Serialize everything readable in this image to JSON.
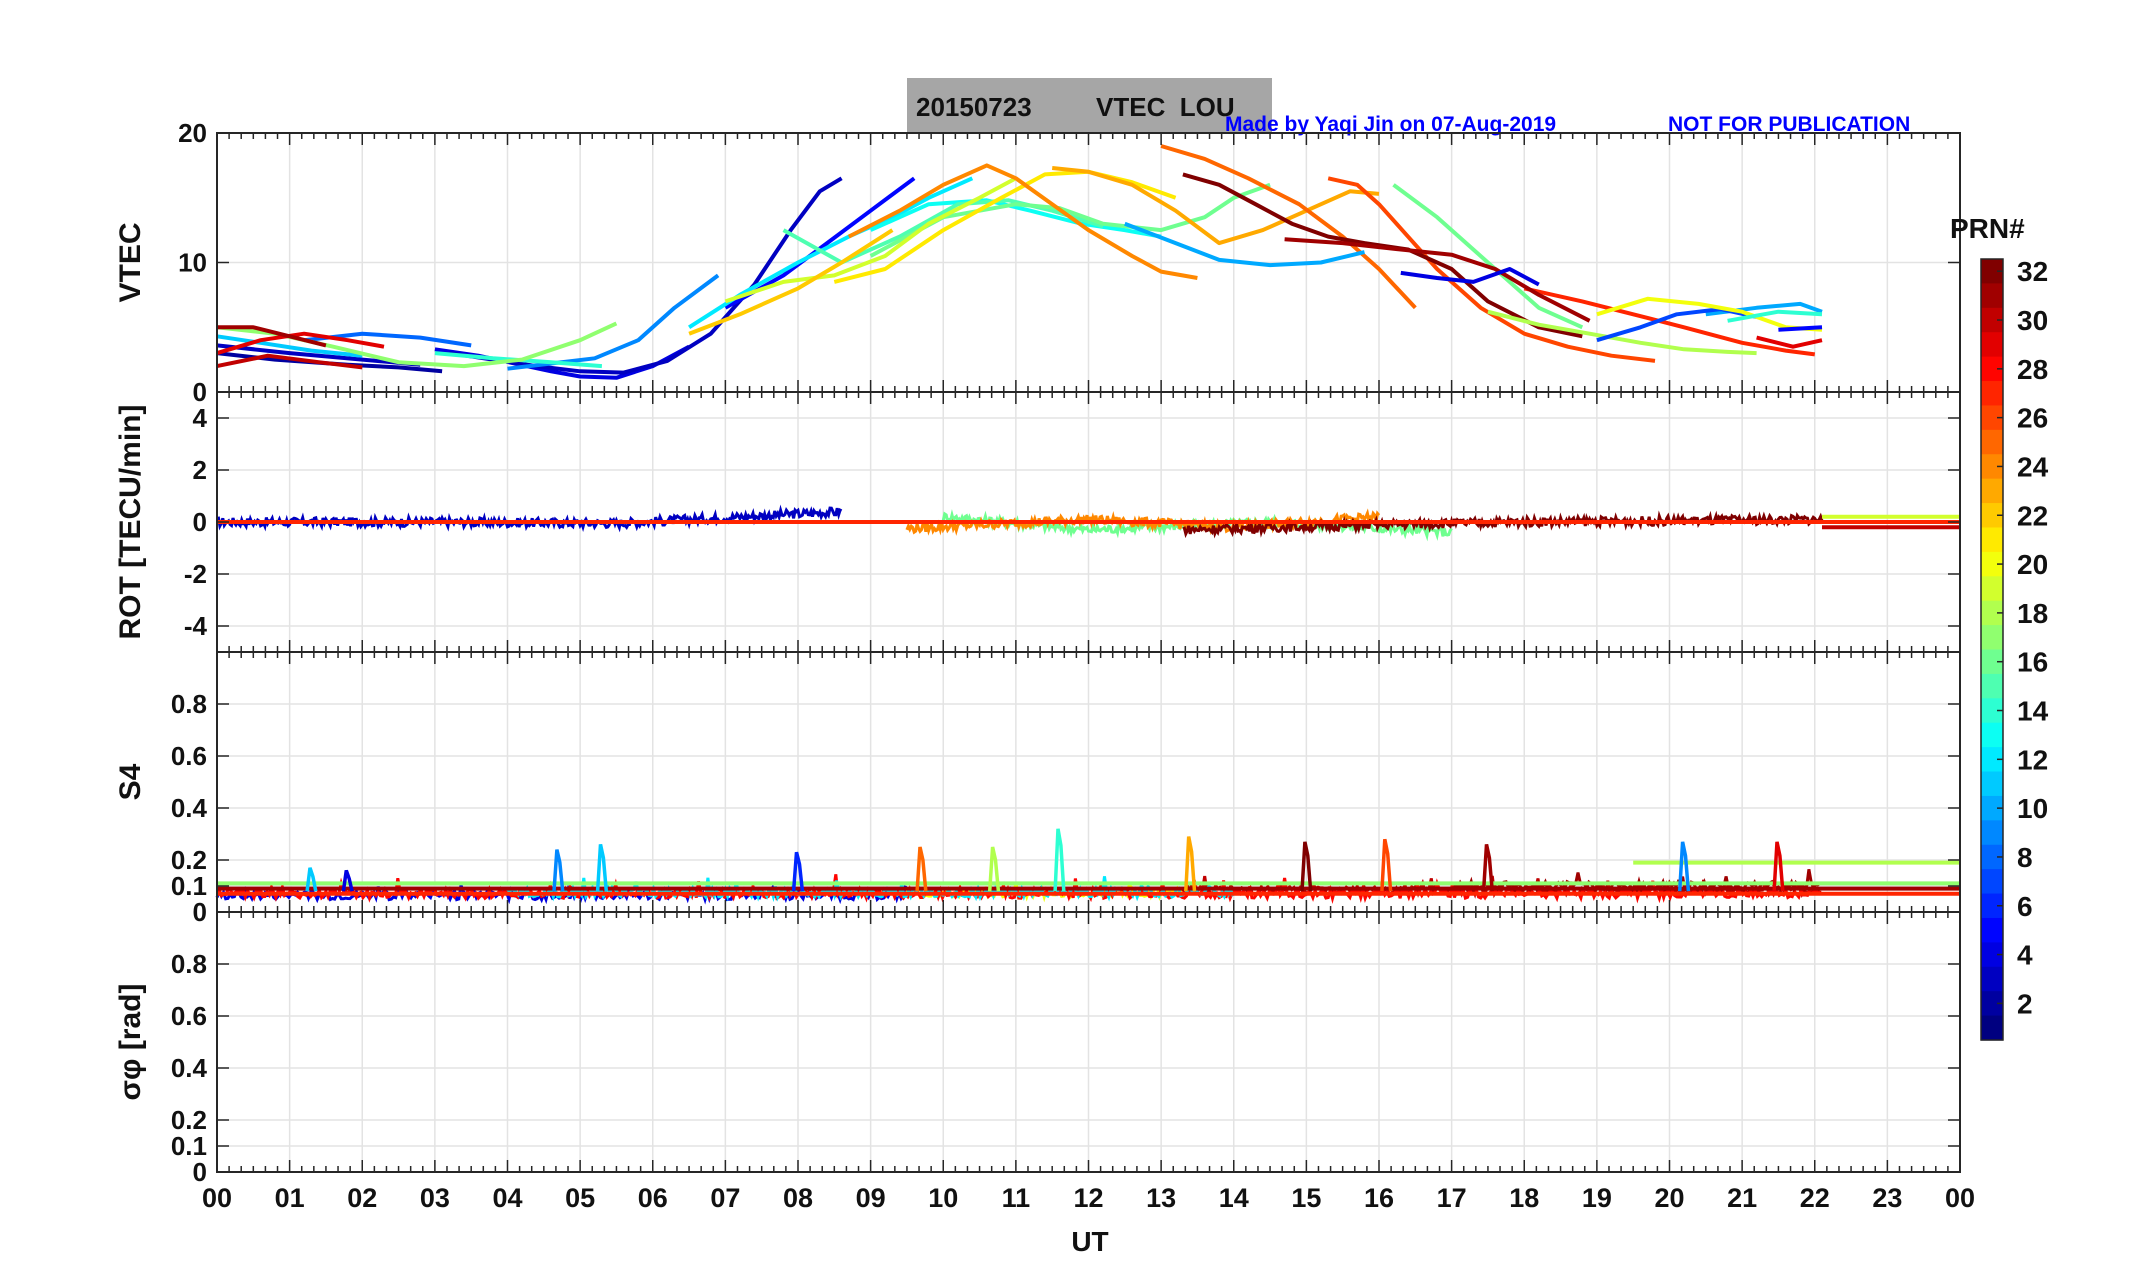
{
  "figure": {
    "title_date": "20150723",
    "title_text": "VTEC  LOU",
    "credit": "Made by Yaqi Jin on 07-Aug-2019",
    "notice": "NOT FOR PUBLICATION",
    "colorbar_label": "PRN#"
  },
  "colors": {
    "title_box": "#a6a6a6",
    "credit_text": "#0000ff",
    "grid": "#e3e3e3",
    "axis": "#262626"
  },
  "chart_data": [
    {
      "id": "vtec",
      "type": "line",
      "ylabel": "VTEC",
      "xlim": [
        0,
        24
      ],
      "ylim": [
        0,
        20
      ],
      "yticks": [
        0,
        10,
        20
      ],
      "ytick_labels": [
        "0",
        "10",
        "20"
      ],
      "series": [
        {
          "prn": 2,
          "x": [
            0,
            0.8,
            1.8,
            2.5,
            3.1
          ],
          "y": [
            3.0,
            2.5,
            2.1,
            1.9,
            1.6
          ]
        },
        {
          "prn": 3,
          "x": [
            0,
            1.0,
            2.0,
            2.8
          ],
          "y": [
            3.6,
            3.0,
            2.5,
            2.1
          ]
        },
        {
          "prn": 4,
          "x": [
            3.0,
            3.6,
            4.1,
            4.6,
            5.0,
            5.5,
            6.0,
            6.5
          ],
          "y": [
            3.3,
            2.8,
            2.2,
            1.6,
            1.2,
            1.1,
            2.0,
            3.5
          ]
        },
        {
          "prn": 3,
          "x": [
            3.2,
            3.8,
            4.4,
            5.0,
            5.6,
            6.2,
            6.8,
            7.4,
            7.9,
            8.3,
            8.6
          ],
          "y": [
            3.0,
            2.5,
            2.0,
            1.6,
            1.5,
            2.4,
            4.5,
            8.3,
            12.5,
            15.5,
            16.5
          ]
        },
        {
          "prn": 5,
          "x": [
            7.0,
            7.8,
            8.4,
            9.0,
            9.6
          ],
          "y": [
            6.5,
            9.0,
            11.5,
            14.0,
            16.5
          ]
        },
        {
          "prn": 8,
          "x": [
            1.2,
            2.0,
            2.8,
            3.5
          ],
          "y": [
            4.0,
            4.5,
            4.2,
            3.6
          ]
        },
        {
          "prn": 9,
          "x": [
            4.0,
            4.6,
            5.2,
            5.8,
            6.3,
            6.9
          ],
          "y": [
            1.8,
            2.2,
            2.6,
            4.0,
            6.5,
            9.0
          ]
        },
        {
          "prn": 11,
          "x": [
            0,
            0.6,
            1.3,
            2.0
          ],
          "y": [
            4.3,
            3.8,
            3.2,
            2.8
          ]
        },
        {
          "prn": 12,
          "x": [
            6.5,
            7.2,
            8.0,
            8.7,
            9.3,
            9.8,
            10.4
          ],
          "y": [
            5.0,
            7.5,
            10.0,
            12.0,
            13.5,
            15.0,
            16.5
          ]
        },
        {
          "prn": 13,
          "x": [
            9.0,
            9.8,
            10.6,
            11.2,
            11.9,
            12.5,
            13.0
          ],
          "y": [
            12.5,
            14.5,
            14.8,
            14.0,
            13.0,
            12.5,
            12.0
          ]
        },
        {
          "prn": 14,
          "x": [
            3.0,
            3.8,
            4.6,
            5.3
          ],
          "y": [
            3.0,
            2.6,
            2.3,
            2.0
          ]
        },
        {
          "prn": 15,
          "x": [
            7.8,
            8.6,
            9.4,
            10.2,
            10.9,
            11.5,
            12.2
          ],
          "y": [
            12.5,
            10.0,
            12.0,
            14.5,
            14.8,
            14.0,
            12.8
          ]
        },
        {
          "prn": 16,
          "x": [
            9.0,
            10.0,
            11.0,
            11.6,
            12.2,
            13.0,
            13.6,
            14.0,
            14.5
          ],
          "y": [
            10.5,
            13.5,
            14.5,
            14.2,
            13.0,
            12.5,
            13.5,
            15.0,
            16.0
          ]
        },
        {
          "prn": 16,
          "x": [
            16.2,
            16.8,
            17.5,
            18.2,
            18.8
          ],
          "y": [
            16.0,
            13.5,
            10.0,
            6.5,
            5.0
          ]
        },
        {
          "prn": 17,
          "x": [
            0,
            0.8,
            1.6,
            2.5,
            3.4,
            4.2,
            5.0,
            5.5
          ],
          "y": [
            5.0,
            4.5,
            3.5,
            2.3,
            2.0,
            2.5,
            4.0,
            5.3
          ]
        },
        {
          "prn": 19,
          "x": [
            7.0,
            7.8,
            8.5,
            9.2,
            9.8,
            10.5,
            11.0
          ],
          "y": [
            7.0,
            8.5,
            9.0,
            10.5,
            13.0,
            15.0,
            16.5
          ]
        },
        {
          "prn": 21,
          "x": [
            8.5,
            9.2,
            10.0,
            10.8,
            11.4,
            12.0,
            12.6,
            13.2
          ],
          "y": [
            8.5,
            9.5,
            12.5,
            15.0,
            16.8,
            17.0,
            16.2,
            15.0
          ]
        },
        {
          "prn": 22,
          "x": [
            6.5,
            7.2,
            8.0,
            8.6,
            9.3
          ],
          "y": [
            4.5,
            6.0,
            8.0,
            10.0,
            12.5
          ]
        },
        {
          "prn": 23,
          "x": [
            11.5,
            12.0,
            12.6,
            13.2,
            13.8,
            14.4,
            15.0,
            15.6,
            16.0
          ],
          "y": [
            17.3,
            17.0,
            16.0,
            14.0,
            11.5,
            12.5,
            14.0,
            15.5,
            15.3
          ]
        },
        {
          "prn": 24,
          "x": [
            8.7,
            9.4,
            10.0,
            10.6,
            11.0,
            11.5,
            12.0,
            12.6,
            13.0,
            13.5
          ],
          "y": [
            12.0,
            14.0,
            16.0,
            17.5,
            16.5,
            14.5,
            12.5,
            10.5,
            9.3,
            8.8
          ]
        },
        {
          "prn": 25,
          "x": [
            13.0,
            13.6,
            14.2,
            14.9,
            15.5,
            16.0,
            16.5
          ],
          "y": [
            19.0,
            18.0,
            16.5,
            14.5,
            12.0,
            9.5,
            6.5
          ]
        },
        {
          "prn": 26,
          "x": [
            15.3,
            15.7,
            16.0,
            16.4,
            16.8,
            17.4,
            18.0,
            18.6,
            19.2,
            19.8
          ],
          "y": [
            16.5,
            16.0,
            14.5,
            12.0,
            9.5,
            6.5,
            4.5,
            3.5,
            2.8,
            2.4
          ]
        },
        {
          "prn": 27,
          "x": [
            18.0,
            18.8,
            19.5,
            20.2,
            21.0,
            21.6,
            22.0
          ],
          "y": [
            8.0,
            7.0,
            6.0,
            5.0,
            3.8,
            3.2,
            2.9
          ]
        },
        {
          "prn": 29,
          "x": [
            0,
            0.6,
            1.2,
            1.8,
            2.3
          ],
          "y": [
            3.0,
            4.0,
            4.5,
            4.0,
            3.5
          ]
        },
        {
          "prn": 30,
          "x": [
            0,
            0.7,
            1.4,
            2.0
          ],
          "y": [
            2.0,
            2.8,
            2.3,
            1.9
          ]
        },
        {
          "prn": 31,
          "x": [
            0,
            0.5,
            1.0,
            1.5
          ],
          "y": [
            5.0,
            5.0,
            4.3,
            3.6
          ]
        },
        {
          "prn": 32,
          "x": [
            13.3,
            13.8,
            14.3,
            14.8,
            15.3,
            15.8,
            16.4,
            17.0,
            17.5,
            18.2,
            18.8
          ],
          "y": [
            16.8,
            16.0,
            14.5,
            13.0,
            12.0,
            11.5,
            11.0,
            9.5,
            7.0,
            5.0,
            4.3
          ]
        },
        {
          "prn": 31,
          "x": [
            14.7,
            15.5,
            16.3,
            17.0,
            17.6,
            18.2,
            18.9
          ],
          "y": [
            11.8,
            11.5,
            11.0,
            10.6,
            9.5,
            7.5,
            5.5
          ]
        },
        {
          "prn": 4,
          "x": [
            16.3,
            16.8,
            17.3,
            17.8,
            18.2
          ],
          "y": [
            9.2,
            8.8,
            8.5,
            9.5,
            8.3
          ]
        },
        {
          "prn": 10,
          "x": [
            12.5,
            13.2,
            13.8,
            14.5,
            15.2,
            15.8
          ],
          "y": [
            13.0,
            11.5,
            10.2,
            9.8,
            10.0,
            10.8
          ]
        },
        {
          "prn": 18,
          "x": [
            17.5,
            18.2,
            18.9,
            19.6,
            20.2,
            20.8,
            21.2
          ],
          "y": [
            6.2,
            5.2,
            4.5,
            3.8,
            3.3,
            3.1,
            3.0
          ]
        },
        {
          "prn": 10,
          "x": [
            20.5,
            21.2,
            21.8,
            22.1
          ],
          "y": [
            6.0,
            6.5,
            6.8,
            6.2
          ]
        },
        {
          "prn": 7,
          "x": [
            19.0,
            19.6,
            20.1,
            20.7,
            21.2
          ],
          "y": [
            4.0,
            5.0,
            6.0,
            6.4,
            5.8
          ]
        },
        {
          "prn": 20,
          "x": [
            19.0,
            19.7,
            20.4,
            21.0,
            21.6,
            22.1
          ],
          "y": [
            6.0,
            7.2,
            6.8,
            6.2,
            5.0,
            4.8
          ]
        },
        {
          "prn": 29,
          "x": [
            21.2,
            21.7,
            22.1
          ],
          "y": [
            4.2,
            3.5,
            4.0
          ]
        },
        {
          "prn": 5,
          "x": [
            21.5,
            22.1
          ],
          "y": [
            4.8,
            5.0
          ]
        },
        {
          "prn": 14,
          "x": [
            20.8,
            21.5,
            22.1
          ],
          "y": [
            5.5,
            6.2,
            6.0
          ]
        }
      ]
    },
    {
      "id": "rot",
      "type": "line",
      "ylabel": "ROT [TECU/min]",
      "xlim": [
        0,
        24
      ],
      "ylim": [
        -5,
        5
      ],
      "yticks": [
        -4,
        -2,
        0,
        2,
        4
      ],
      "ytick_labels": [
        "-4",
        "-2",
        "0",
        "2",
        "4"
      ],
      "series": [
        {
          "prn": 3,
          "x": [
            0,
            3,
            5.5,
            8.6
          ],
          "y": [
            0.0,
            0.0,
            -0.05,
            0.4
          ]
        },
        {
          "prn": 16,
          "x": [
            10,
            12,
            14.5,
            17
          ],
          "y": [
            0.2,
            -0.3,
            0.0,
            -0.4
          ]
        },
        {
          "prn": 24,
          "x": [
            9.5,
            12,
            14,
            16
          ],
          "y": [
            -0.25,
            0.1,
            -0.2,
            0.2
          ]
        },
        {
          "prn": 32,
          "x": [
            13.3,
            16,
            18,
            22.1
          ],
          "y": [
            -0.3,
            -0.1,
            0.0,
            0.1
          ]
        },
        {
          "prn": 27,
          "x": [
            0,
            24
          ],
          "y": [
            0.0,
            0.0
          ]
        },
        {
          "prn": 19,
          "x": [
            22.1,
            24
          ],
          "y": [
            0.2,
            0.2
          ]
        },
        {
          "prn": 30,
          "x": [
            22.1,
            24
          ],
          "y": [
            -0.2,
            -0.2
          ]
        }
      ]
    },
    {
      "id": "s4",
      "type": "line",
      "ylabel": "S4",
      "xlim": [
        0,
        24
      ],
      "ylim": [
        0,
        1
      ],
      "yticks": [
        0,
        0.1,
        0.2,
        0.4,
        0.6,
        0.8
      ],
      "ytick_labels": [
        "0",
        "0.1",
        "0.2",
        "0.4",
        "0.6",
        "0.8"
      ],
      "spikes": [
        {
          "prn": 11,
          "x": 1.3,
          "y": 0.17
        },
        {
          "prn": 4,
          "x": 1.8,
          "y": 0.16
        },
        {
          "prn": 9,
          "x": 4.7,
          "y": 0.24
        },
        {
          "prn": 11,
          "x": 5.3,
          "y": 0.26
        },
        {
          "prn": 6,
          "x": 8.0,
          "y": 0.23
        },
        {
          "prn": 25,
          "x": 9.7,
          "y": 0.25
        },
        {
          "prn": 18,
          "x": 10.7,
          "y": 0.25
        },
        {
          "prn": 14,
          "x": 11.6,
          "y": 0.32
        },
        {
          "prn": 23,
          "x": 13.4,
          "y": 0.29
        },
        {
          "prn": 32,
          "x": 15.0,
          "y": 0.27
        },
        {
          "prn": 26,
          "x": 16.1,
          "y": 0.28
        },
        {
          "prn": 31,
          "x": 17.5,
          "y": 0.26
        },
        {
          "prn": 9,
          "x": 20.2,
          "y": 0.27
        },
        {
          "prn": 29,
          "x": 21.5,
          "y": 0.27
        }
      ],
      "series": [
        {
          "prn": 18,
          "x": [
            19.5,
            24
          ],
          "y": [
            0.19,
            0.19
          ]
        },
        {
          "prn": 17,
          "x": [
            0,
            24
          ],
          "y": [
            0.11,
            0.11
          ]
        },
        {
          "prn": 27,
          "x": [
            0,
            24
          ],
          "y": [
            0.07,
            0.07
          ]
        },
        {
          "prn": 31,
          "x": [
            0,
            24
          ],
          "y": [
            0.09,
            0.09
          ]
        }
      ]
    },
    {
      "id": "sigma_phi",
      "type": "line",
      "ylabel": "σφ [rad]",
      "xlabel": "UT",
      "xlim": [
        0,
        24
      ],
      "ylim": [
        0,
        1
      ],
      "yticks": [
        0,
        0.1,
        0.2,
        0.4,
        0.6,
        0.8
      ],
      "ytick_labels": [
        "0",
        "0.1",
        "0.2",
        "0.4",
        "0.6",
        "0.8"
      ],
      "xtick_labels": [
        "00",
        "01",
        "02",
        "03",
        "04",
        "05",
        "06",
        "07",
        "08",
        "09",
        "10",
        "11",
        "12",
        "13",
        "14",
        "15",
        "16",
        "17",
        "18",
        "19",
        "20",
        "21",
        "22",
        "23",
        "00"
      ],
      "series": []
    },
    {
      "id": "colorbar",
      "type": "heatmap",
      "label": "PRN#",
      "range": [
        1,
        32
      ],
      "tick_labels": [
        "2",
        "4",
        "6",
        "8",
        "10",
        "12",
        "14",
        "16",
        "18",
        "20",
        "22",
        "24",
        "26",
        "28",
        "30",
        "32"
      ]
    }
  ]
}
